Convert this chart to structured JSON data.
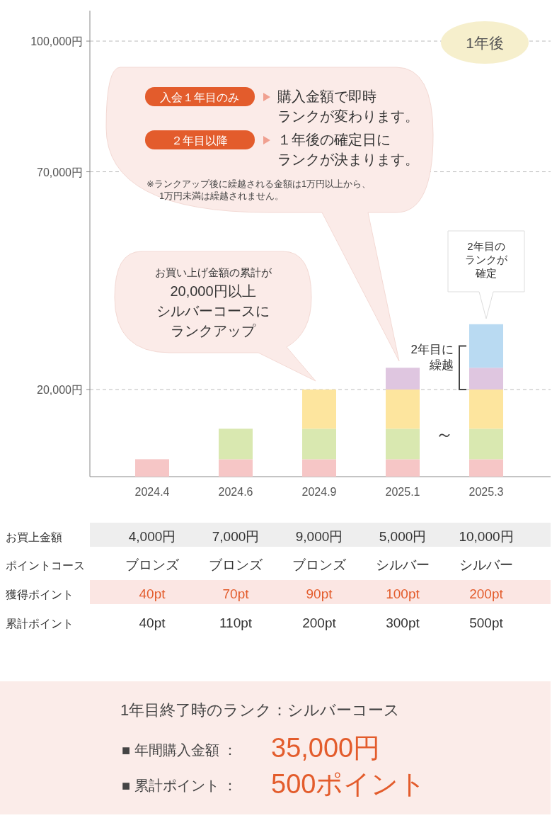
{
  "chart_data": {
    "type": "bar",
    "stacked": true,
    "categories": [
      "2024.4",
      "2024.6",
      "2024.9",
      "2025.1",
      "2025.3"
    ],
    "series": [
      {
        "color": "#f6c6c6",
        "values": [
          4000,
          4000,
          4000,
          4000,
          4000
        ]
      },
      {
        "color": "#d9e8b0",
        "values": [
          null,
          7000,
          7000,
          7000,
          7000
        ]
      },
      {
        "color": "#fde59e",
        "values": [
          null,
          null,
          9000,
          9000,
          9000
        ]
      },
      {
        "color": "#dfc6e0",
        "values": [
          null,
          null,
          null,
          5000,
          5000
        ]
      },
      {
        "color": "#b9daf2",
        "values": [
          null,
          null,
          null,
          null,
          10000
        ]
      }
    ],
    "ylim": [
      0,
      107000
    ],
    "yticks": [
      {
        "value": 20000,
        "label": "20,000円"
      },
      {
        "value": 70000,
        "label": "70,000円"
      },
      {
        "value": 100000,
        "label": "100,000円"
      }
    ],
    "grid": "y",
    "annotations": [
      "1年後",
      "入会１年目のみ",
      "購入金額で即時",
      "ランクが変わります。",
      "２年目以降",
      "１年後の確定日に",
      "ランクが決まります。",
      "※ランクアップ後に繰越される金額は1万円以上から、",
      "1万円未満は繰越されません。",
      "お買い上げ金額の累計が",
      "20,000円以上",
      "シルバーコースに",
      "ランクアップ",
      "2年目の",
      "ランクが",
      "確定",
      {
        "text": "2年目に繰越",
        "x": "2025.3",
        "y": 25000
      },
      "～",
      "お買上金額",
      "4,000円",
      "7,000円",
      "9,000円",
      "5,000円",
      "10,000円",
      "ポイントコース",
      "ブロンズ",
      "ブロンズ",
      "ブロンズ",
      "シルバー",
      "シルバー",
      "獲得ポイント",
      "40pt",
      "70pt",
      "90pt",
      "100pt",
      "200pt",
      "累計ポイント",
      "40pt",
      "110pt",
      "200pt",
      "300pt",
      "500pt",
      "1年目終了時のランク：シルバーコース",
      "■ 年間購入金額 ：",
      "35,000円",
      "■ 累計ポイント ：",
      "500ポイント"
    ]
  }
}
